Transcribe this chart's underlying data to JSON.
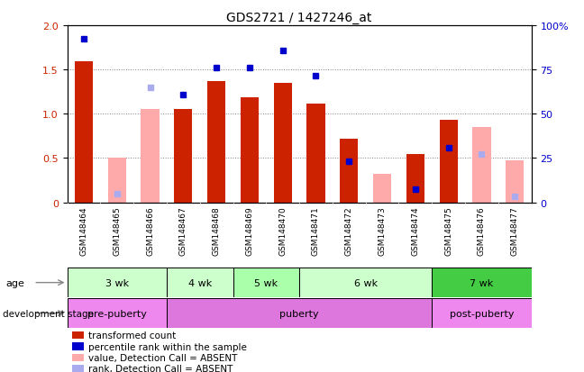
{
  "title": "GDS2721 / 1427246_at",
  "samples": [
    "GSM148464",
    "GSM148465",
    "GSM148466",
    "GSM148467",
    "GSM148468",
    "GSM148469",
    "GSM148470",
    "GSM148471",
    "GSM148472",
    "GSM148473",
    "GSM148474",
    "GSM148475",
    "GSM148476",
    "GSM148477"
  ],
  "bar_heights": [
    1.59,
    0.0,
    0.0,
    1.05,
    1.37,
    1.19,
    1.35,
    1.12,
    0.72,
    0.0,
    0.55,
    0.93,
    0.0,
    0.0
  ],
  "absent_bar_heights": [
    0.0,
    0.5,
    1.05,
    0.0,
    0.0,
    0.0,
    0.0,
    0.0,
    0.0,
    0.32,
    0.0,
    0.0,
    0.85,
    0.47
  ],
  "percentile_rank_present": [
    1.85,
    0.0,
    0.0,
    1.22,
    1.52,
    1.52,
    1.72,
    1.43,
    0.46,
    0.0,
    0.15,
    0.62,
    0.0,
    0.0
  ],
  "percentile_rank_absent": [
    0.0,
    0.1,
    1.3,
    0.0,
    0.0,
    0.0,
    0.0,
    0.0,
    0.05,
    0.0,
    0.0,
    0.0,
    0.55,
    0.07
  ],
  "is_absent": [
    false,
    true,
    true,
    false,
    false,
    false,
    false,
    false,
    false,
    true,
    false,
    false,
    true,
    true
  ],
  "age_groups": [
    {
      "label": "3 wk",
      "start": 0,
      "end": 3,
      "color": "#ccffcc"
    },
    {
      "label": "4 wk",
      "start": 3,
      "end": 5,
      "color": "#ccffcc"
    },
    {
      "label": "5 wk",
      "start": 5,
      "end": 7,
      "color": "#aaffaa"
    },
    {
      "label": "6 wk",
      "start": 7,
      "end": 11,
      "color": "#ccffcc"
    },
    {
      "label": "7 wk",
      "start": 11,
      "end": 14,
      "color": "#44cc44"
    }
  ],
  "dev_groups": [
    {
      "label": "pre-puberty",
      "start": 0,
      "end": 3,
      "color": "#ee88ee"
    },
    {
      "label": "puberty",
      "start": 3,
      "end": 11,
      "color": "#dd77dd"
    },
    {
      "label": "post-puberty",
      "start": 11,
      "end": 14,
      "color": "#ee88ee"
    }
  ],
  "ylim": [
    0,
    2.0
  ],
  "y2lim": [
    0,
    100
  ],
  "yticks": [
    0,
    0.5,
    1.0,
    1.5,
    2.0
  ],
  "y2ticks": [
    0,
    25,
    50,
    75,
    100
  ],
  "bar_color": "#cc2200",
  "absent_bar_color": "#ffaaaa",
  "rank_color": "#0000cc",
  "absent_rank_color": "#aaaaee",
  "legend_items": [
    {
      "label": "transformed count",
      "color": "#cc2200"
    },
    {
      "label": "percentile rank within the sample",
      "color": "#0000cc"
    },
    {
      "label": "value, Detection Call = ABSENT",
      "color": "#ffaaaa"
    },
    {
      "label": "rank, Detection Call = ABSENT",
      "color": "#aaaaee"
    }
  ]
}
